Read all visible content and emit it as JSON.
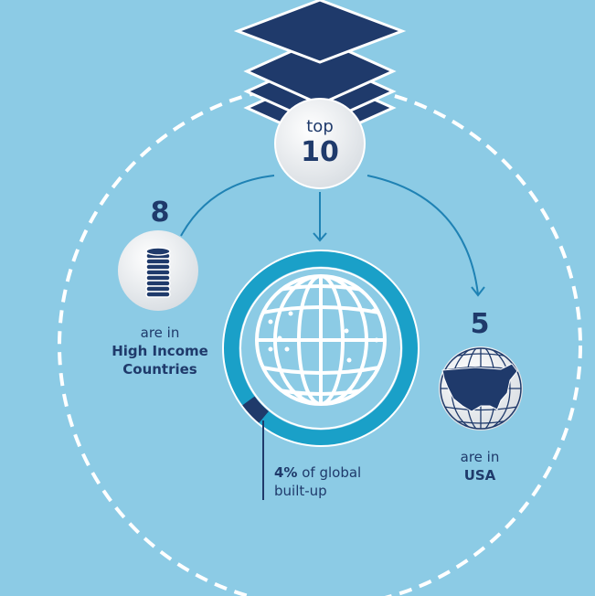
{
  "top": {
    "label": "top",
    "number": "10"
  },
  "high_income": {
    "number": "8",
    "line1": "are in",
    "line2": "High Income",
    "line3": "Countries"
  },
  "usa": {
    "number": "5",
    "line1": "are in",
    "line2": "USA"
  },
  "share": {
    "percent": "4%",
    "rest": " of global",
    "line2": "built-up",
    "value_percent": 4
  },
  "colors": {
    "background": "#8ccbe5",
    "navy": "#1f3a6b",
    "ring": "#1aa0c8",
    "white": "#ffffff"
  },
  "icons": [
    "stacked-layers-icon",
    "coin-stack-icon",
    "globe-icon",
    "usa-globe-icon"
  ]
}
